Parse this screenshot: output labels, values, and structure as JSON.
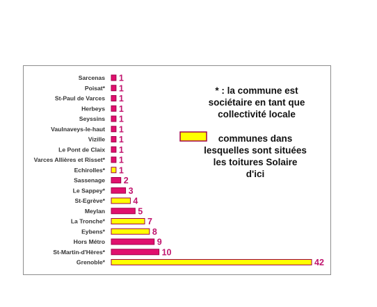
{
  "chart_data": {
    "type": "bar",
    "orientation": "horizontal",
    "categories": [
      "Sarcenas",
      "Poisat*",
      "St-Paul de Varces",
      "Herbeys",
      "Seyssins",
      "Vaulnaveys-le-haut",
      "Vizille",
      "Le Pont de Claix",
      "Varces Allières et Risset*",
      "Echirolles*",
      "Sassenage",
      "Le Sappey*",
      "St-Egrève*",
      "Meylan",
      "La Tronche*",
      "Eybens*",
      "Hors Métro",
      "St-Martin-d'Hères*",
      "Grenoble*"
    ],
    "values": [
      1,
      1,
      1,
      1,
      1,
      1,
      1,
      1,
      1,
      1,
      2,
      3,
      4,
      5,
      7,
      8,
      9,
      10,
      42
    ],
    "highlighted": [
      false,
      false,
      false,
      false,
      false,
      false,
      false,
      false,
      false,
      true,
      false,
      false,
      true,
      false,
      true,
      true,
      false,
      false,
      true
    ],
    "colors": {
      "default_bar": "#e0106e",
      "highlight_bar": "#ffff00",
      "bar_border": "#a0004a",
      "value_label": "#c0156e"
    },
    "xlim": [
      0,
      42
    ],
    "grid": false,
    "annotations": {
      "note_lines": [
        "* : la commune est",
        "sociétaire en tant que",
        "collectivité locale"
      ],
      "legend_lines": [
        "communes dans",
        "lesquelles sont situées",
        "les toitures Solaire",
        "d'ici"
      ]
    }
  }
}
